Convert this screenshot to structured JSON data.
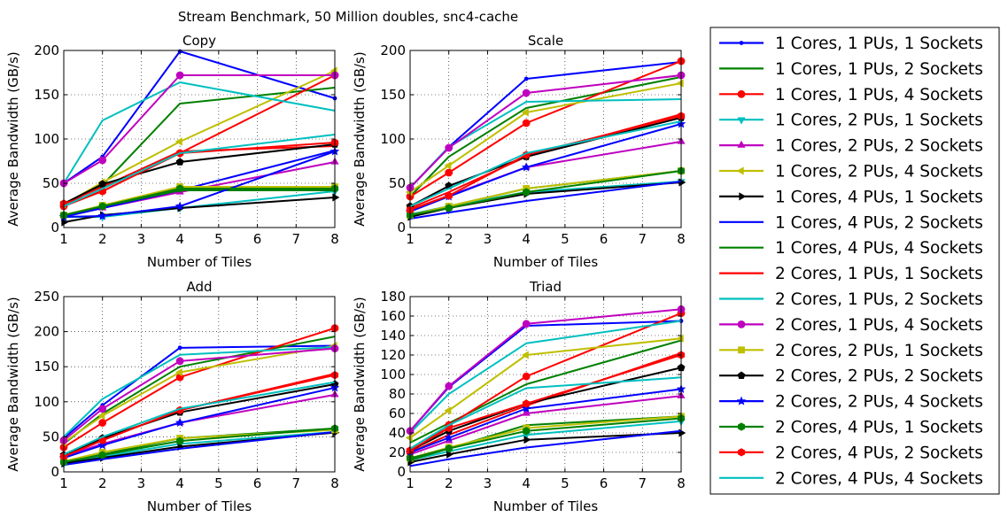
{
  "suptitle": "Stream Benchmark, 50 Million doubles, snc4-cache",
  "legend": {
    "placement": "right",
    "entries": [
      {
        "label": "1 Cores, 1 PUs, 1 Sockets",
        "color": "#0000ff",
        "marker": "point"
      },
      {
        "label": "1 Cores, 1 PUs, 2 Sockets",
        "color": "#008000",
        "marker": "none"
      },
      {
        "label": "1 Cores, 1 PUs, 4 Sockets",
        "color": "#ff0000",
        "marker": "circle"
      },
      {
        "label": "1 Cores, 2 PUs, 1 Sockets",
        "color": "#00bfbf",
        "marker": "triangle-down"
      },
      {
        "label": "1 Cores, 2 PUs, 2 Sockets",
        "color": "#bf00bf",
        "marker": "triangle-up"
      },
      {
        "label": "1 Cores, 2 PUs, 4 Sockets",
        "color": "#bfbf00",
        "marker": "triangle-left"
      },
      {
        "label": "1 Cores, 4 PUs, 1 Sockets",
        "color": "#000000",
        "marker": "triangle-right"
      },
      {
        "label": "1 Cores, 4 PUs, 2 Sockets",
        "color": "#0000ff",
        "marker": "none"
      },
      {
        "label": "1 Cores, 4 PUs, 4 Sockets",
        "color": "#008000",
        "marker": "none"
      },
      {
        "label": "2 Cores, 1 PUs, 1 Sockets",
        "color": "#ff0000",
        "marker": "none"
      },
      {
        "label": "2 Cores, 1 PUs, 2 Sockets",
        "color": "#00bfbf",
        "marker": "none"
      },
      {
        "label": "2 Cores, 1 PUs, 4 Sockets",
        "color": "#bf00bf",
        "marker": "circle"
      },
      {
        "label": "2 Cores, 2 PUs, 1 Sockets",
        "color": "#bfbf00",
        "marker": "square"
      },
      {
        "label": "2 Cores, 2 PUs, 2 Sockets",
        "color": "#000000",
        "marker": "pentagon"
      },
      {
        "label": "2 Cores, 2 PUs, 4 Sockets",
        "color": "#0000ff",
        "marker": "star"
      },
      {
        "label": "2 Cores, 4 PUs, 1 Sockets",
        "color": "#008000",
        "marker": "hexagon"
      },
      {
        "label": "2 Cores, 4 PUs, 2 Sockets",
        "color": "#ff0000",
        "marker": "hexagon"
      },
      {
        "label": "2 Cores, 4 PUs, 4 Sockets",
        "color": "#00bfbf",
        "marker": "none"
      }
    ]
  },
  "chart_data": [
    {
      "type": "line",
      "title": "Copy",
      "xlabel": "Number of Tiles",
      "ylabel": "Average Bandwidth (GB/s)",
      "x": [
        1,
        2,
        4,
        8
      ],
      "xlim": [
        1,
        8
      ],
      "ylim": [
        0,
        200
      ],
      "xticks": [
        1,
        2,
        3,
        4,
        5,
        6,
        7,
        8
      ],
      "yticks": [
        0,
        50,
        100,
        150,
        200
      ],
      "grid": true,
      "series": [
        {
          "name": "1 Cores, 1 PUs, 1 Sockets",
          "values": [
            50,
            80,
            199,
            146
          ]
        },
        {
          "name": "1 Cores, 1 PUs, 2 Sockets",
          "values": [
            27,
            48,
            140,
            158
          ]
        },
        {
          "name": "1 Cores, 1 PUs, 4 Sockets",
          "values": [
            24,
            41,
            84,
            172
          ]
        },
        {
          "name": "1 Cores, 2 PUs, 1 Sockets",
          "values": [
            12,
            12,
            22,
            41
          ]
        },
        {
          "name": "1 Cores, 2 PUs, 2 Sockets",
          "values": [
            14,
            22,
            40,
            74
          ]
        },
        {
          "name": "1 Cores, 2 PUs, 4 Sockets",
          "values": [
            26,
            51,
            97,
            177
          ]
        },
        {
          "name": "1 Cores, 4 PUs, 1 Sockets",
          "values": [
            6,
            14,
            22,
            34
          ]
        },
        {
          "name": "1 Cores, 4 PUs, 2 Sockets",
          "values": [
            12,
            22,
            42,
            87
          ]
        },
        {
          "name": "1 Cores, 4 PUs, 4 Sockets",
          "values": [
            14,
            24,
            42,
            42
          ]
        },
        {
          "name": "2 Cores, 1 PUs, 1 Sockets",
          "values": [
            27,
            46,
            86,
            92
          ]
        },
        {
          "name": "2 Cores, 1 PUs, 2 Sockets",
          "values": [
            50,
            121,
            164,
            132
          ]
        },
        {
          "name": "2 Cores, 1 PUs, 4 Sockets",
          "values": [
            50,
            76,
            172,
            172
          ]
        },
        {
          "name": "2 Cores, 2 PUs, 1 Sockets",
          "values": [
            14,
            25,
            46,
            46
          ]
        },
        {
          "name": "2 Cores, 2 PUs, 2 Sockets",
          "values": [
            27,
            49,
            74,
            94
          ]
        },
        {
          "name": "2 Cores, 2 PUs, 4 Sockets",
          "values": [
            12,
            13,
            24,
            86
          ]
        },
        {
          "name": "2 Cores, 4 PUs, 1 Sockets",
          "values": [
            14,
            24,
            44,
            44
          ]
        },
        {
          "name": "2 Cores, 4 PUs, 2 Sockets",
          "values": [
            27,
            41,
            84,
            96
          ]
        },
        {
          "name": "2 Cores, 4 PUs, 4 Sockets",
          "values": [
            24,
            44,
            84,
            105
          ]
        }
      ]
    },
    {
      "type": "line",
      "title": "Scale",
      "xlabel": "Number of Tiles",
      "ylabel": "Average Bandwidth (GB/s)",
      "x": [
        1,
        2,
        4,
        8
      ],
      "xlim": [
        1,
        8
      ],
      "ylim": [
        0,
        200
      ],
      "xticks": [
        1,
        2,
        3,
        4,
        5,
        6,
        7,
        8
      ],
      "yticks": [
        0,
        50,
        100,
        150,
        200
      ],
      "grid": true,
      "series": [
        {
          "name": "1 Cores, 1 PUs, 1 Sockets",
          "values": [
            45,
            91,
            168,
            187
          ]
        },
        {
          "name": "1 Cores, 1 PUs, 2 Sockets",
          "values": [
            35,
            80,
            135,
            170
          ]
        },
        {
          "name": "1 Cores, 1 PUs, 4 Sockets",
          "values": [
            35,
            62,
            118,
            188
          ]
        },
        {
          "name": "1 Cores, 2 PUs, 1 Sockets",
          "values": [
            15,
            24,
            40,
            52
          ]
        },
        {
          "name": "1 Cores, 2 PUs, 2 Sockets",
          "values": [
            20,
            36,
            68,
            97
          ]
        },
        {
          "name": "1 Cores, 2 PUs, 4 Sockets",
          "values": [
            40,
            70,
            130,
            163
          ]
        },
        {
          "name": "1 Cores, 4 PUs, 1 Sockets",
          "values": [
            12,
            22,
            38,
            51
          ]
        },
        {
          "name": "1 Cores, 4 PUs, 2 Sockets",
          "values": [
            10,
            17,
            30,
            52
          ]
        },
        {
          "name": "1 Cores, 4 PUs, 4 Sockets",
          "values": [
            14,
            24,
            44,
            64
          ]
        },
        {
          "name": "2 Cores, 1 PUs, 1 Sockets",
          "values": [
            22,
            40,
            80,
            128
          ]
        },
        {
          "name": "2 Cores, 1 PUs, 2 Sockets",
          "values": [
            45,
            91,
            142,
            145
          ]
        },
        {
          "name": "2 Cores, 1 PUs, 4 Sockets",
          "values": [
            45,
            90,
            152,
            172
          ]
        },
        {
          "name": "2 Cores, 2 PUs, 1 Sockets",
          "values": [
            14,
            24,
            44,
            64
          ]
        },
        {
          "name": "2 Cores, 2 PUs, 2 Sockets",
          "values": [
            24,
            47,
            80,
            124
          ]
        },
        {
          "name": "2 Cores, 2 PUs, 4 Sockets",
          "values": [
            18,
            35,
            68,
            117
          ]
        },
        {
          "name": "2 Cores, 4 PUs, 1 Sockets",
          "values": [
            14,
            22,
            40,
            64
          ]
        },
        {
          "name": "2 Cores, 4 PUs, 2 Sockets",
          "values": [
            20,
            36,
            82,
            126
          ]
        },
        {
          "name": "2 Cores, 4 PUs, 4 Sockets",
          "values": [
            24,
            44,
            84,
            120
          ]
        }
      ]
    },
    {
      "type": "line",
      "title": "Add",
      "xlabel": "Number of Tiles",
      "ylabel": "Average Bandwidth (GB/s)",
      "x": [
        1,
        2,
        4,
        8
      ],
      "xlim": [
        1,
        8
      ],
      "ylim": [
        0,
        250
      ],
      "xticks": [
        1,
        2,
        3,
        4,
        5,
        6,
        7,
        8
      ],
      "yticks": [
        0,
        50,
        100,
        150,
        200,
        250
      ],
      "grid": true,
      "series": [
        {
          "name": "1 Cores, 1 PUs, 1 Sockets",
          "values": [
            48,
            95,
            177,
            180
          ]
        },
        {
          "name": "1 Cores, 1 PUs, 2 Sockets",
          "values": [
            40,
            83,
            150,
            193
          ]
        },
        {
          "name": "1 Cores, 1 PUs, 4 Sockets",
          "values": [
            35,
            70,
            135,
            205
          ]
        },
        {
          "name": "1 Cores, 2 PUs, 1 Sockets",
          "values": [
            12,
            22,
            40,
            57
          ]
        },
        {
          "name": "1 Cores, 2 PUs, 2 Sockets",
          "values": [
            22,
            40,
            70,
            110
          ]
        },
        {
          "name": "1 Cores, 2 PUs, 4 Sockets",
          "values": [
            42,
            80,
            142,
            180
          ]
        },
        {
          "name": "1 Cores, 4 PUs, 1 Sockets",
          "values": [
            12,
            20,
            36,
            56
          ]
        },
        {
          "name": "1 Cores, 4 PUs, 2 Sockets",
          "values": [
            10,
            18,
            33,
            57
          ]
        },
        {
          "name": "1 Cores, 4 PUs, 4 Sockets",
          "values": [
            14,
            25,
            48,
            62
          ]
        },
        {
          "name": "2 Cores, 1 PUs, 1 Sockets",
          "values": [
            22,
            45,
            88,
            140
          ]
        },
        {
          "name": "2 Cores, 1 PUs, 2 Sockets",
          "values": [
            50,
            104,
            167,
            178
          ]
        },
        {
          "name": "2 Cores, 1 PUs, 4 Sockets",
          "values": [
            45,
            90,
            158,
            176
          ]
        },
        {
          "name": "2 Cores, 2 PUs, 1 Sockets",
          "values": [
            15,
            28,
            48,
            60
          ]
        },
        {
          "name": "2 Cores, 2 PUs, 2 Sockets",
          "values": [
            24,
            48,
            85,
            125
          ]
        },
        {
          "name": "2 Cores, 2 PUs, 4 Sockets",
          "values": [
            20,
            38,
            70,
            120
          ]
        },
        {
          "name": "2 Cores, 4 PUs, 1 Sockets",
          "values": [
            14,
            24,
            44,
            62
          ]
        },
        {
          "name": "2 Cores, 4 PUs, 2 Sockets",
          "values": [
            22,
            45,
            88,
            138
          ]
        },
        {
          "name": "2 Cores, 4 PUs, 4 Sockets",
          "values": [
            25,
            50,
            90,
            128
          ]
        }
      ]
    },
    {
      "type": "line",
      "title": "Triad",
      "xlabel": "Number of Tiles",
      "ylabel": "Average Bandwidth (GB/s)",
      "x": [
        1,
        2,
        4,
        8
      ],
      "xlim": [
        1,
        8
      ],
      "ylim": [
        0,
        180
      ],
      "xticks": [
        1,
        2,
        3,
        4,
        5,
        6,
        7,
        8
      ],
      "yticks": [
        0,
        20,
        40,
        60,
        80,
        100,
        120,
        140,
        160,
        180
      ],
      "grid": true,
      "series": [
        {
          "name": "1 Cores, 1 PUs, 1 Sockets",
          "values": [
            42,
            87,
            150,
            155
          ]
        },
        {
          "name": "1 Cores, 1 PUs, 2 Sockets",
          "values": [
            30,
            50,
            90,
            135
          ]
        },
        {
          "name": "1 Cores, 1 PUs, 4 Sockets",
          "values": [
            20,
            48,
            98,
            163
          ]
        },
        {
          "name": "1 Cores, 2 PUs, 1 Sockets",
          "values": [
            12,
            21,
            38,
            52
          ]
        },
        {
          "name": "1 Cores, 2 PUs, 2 Sockets",
          "values": [
            18,
            32,
            60,
            78
          ]
        },
        {
          "name": "1 Cores, 2 PUs, 4 Sockets",
          "values": [
            35,
            63,
            120,
            137
          ]
        },
        {
          "name": "1 Cores, 4 PUs, 1 Sockets",
          "values": [
            10,
            18,
            33,
            40
          ]
        },
        {
          "name": "1 Cores, 4 PUs, 2 Sockets",
          "values": [
            6,
            13,
            25,
            42
          ]
        },
        {
          "name": "1 Cores, 4 PUs, 4 Sockets",
          "values": [
            12,
            24,
            48,
            57
          ]
        },
        {
          "name": "2 Cores, 1 PUs, 1 Sockets",
          "values": [
            20,
            38,
            68,
            122
          ]
        },
        {
          "name": "2 Cores, 1 PUs, 2 Sockets",
          "values": [
            40,
            80,
            132,
            155
          ]
        },
        {
          "name": "2 Cores, 1 PUs, 4 Sockets",
          "values": [
            42,
            88,
            152,
            167
          ]
        },
        {
          "name": "2 Cores, 2 PUs, 1 Sockets",
          "values": [
            14,
            25,
            45,
            57
          ]
        },
        {
          "name": "2 Cores, 2 PUs, 2 Sockets",
          "values": [
            22,
            42,
            70,
            107
          ]
        },
        {
          "name": "2 Cores, 2 PUs, 4 Sockets",
          "values": [
            20,
            35,
            65,
            85
          ]
        },
        {
          "name": "2 Cores, 4 PUs, 1 Sockets",
          "values": [
            14,
            24,
            42,
            55
          ]
        },
        {
          "name": "2 Cores, 4 PUs, 2 Sockets",
          "values": [
            22,
            45,
            70,
            120
          ]
        },
        {
          "name": "2 Cores, 4 PUs, 4 Sockets",
          "values": [
            24,
            48,
            86,
            97
          ]
        }
      ]
    }
  ]
}
